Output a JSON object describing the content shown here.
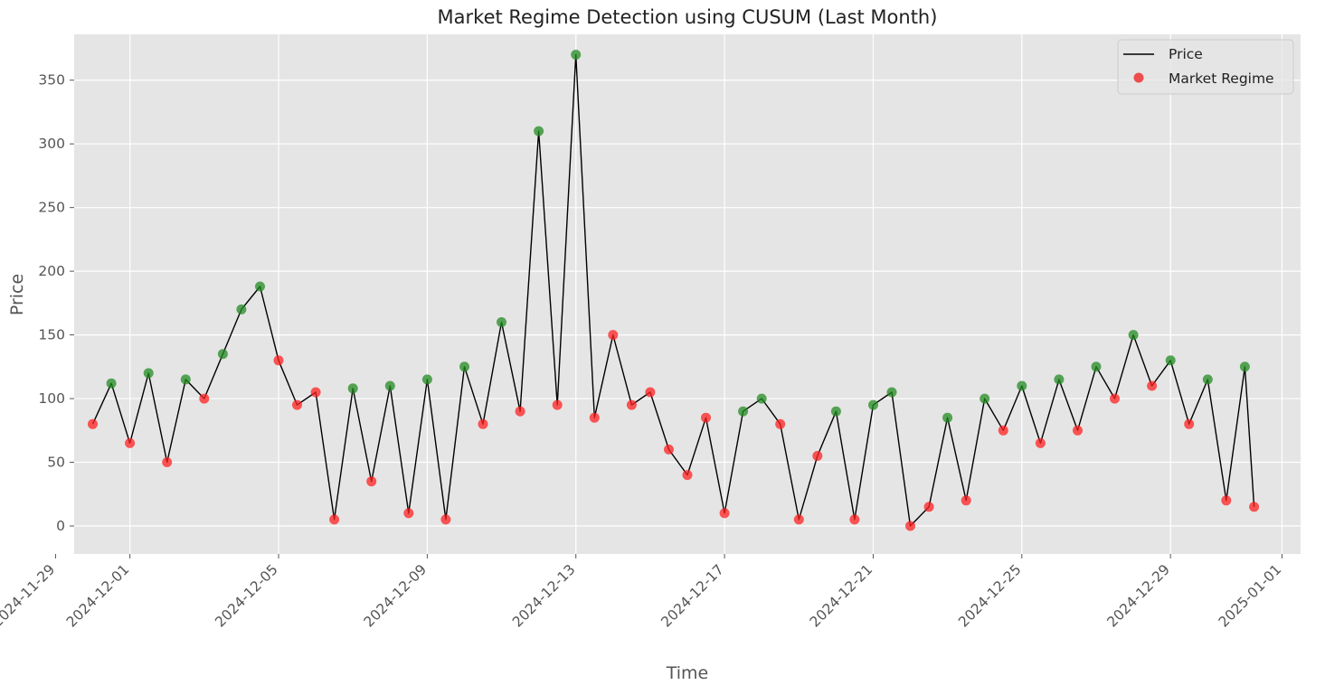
{
  "chart_data": {
    "type": "line",
    "title": "Market Regime Detection using CUSUM (Last Month)",
    "xlabel": "Time",
    "ylabel": "Price",
    "xlim": [
      "2024-11-29T12:00",
      "2025-01-01T12:00"
    ],
    "ylim": [
      -22,
      386
    ],
    "x_ticks": [
      "2024-11-29",
      "2024-12-01",
      "2024-12-05",
      "2024-12-09",
      "2024-12-13",
      "2024-12-17",
      "2024-12-21",
      "2024-12-25",
      "2024-12-29",
      "2025-01-01"
    ],
    "y_ticks": [
      0,
      50,
      100,
      150,
      200,
      250,
      300,
      350
    ],
    "grid": true,
    "legend_position": "top-right",
    "legend": [
      {
        "label": "Price",
        "kind": "line",
        "color": "#000000"
      },
      {
        "label": "Market Regime",
        "kind": "marker",
        "color": "#ee3333"
      }
    ],
    "regime_colors": {
      "up": "#228b22",
      "down": "#ff2020"
    },
    "series": [
      {
        "name": "Price",
        "x": [
          "2024-11-30T00:00",
          "2024-11-30T12:00",
          "2024-12-01T00:00",
          "2024-12-01T12:00",
          "2024-12-02T00:00",
          "2024-12-02T12:00",
          "2024-12-03T00:00",
          "2024-12-03T12:00",
          "2024-12-04T00:00",
          "2024-12-04T12:00",
          "2024-12-05T00:00",
          "2024-12-05T12:00",
          "2024-12-06T00:00",
          "2024-12-06T12:00",
          "2024-12-07T00:00",
          "2024-12-07T12:00",
          "2024-12-08T00:00",
          "2024-12-08T12:00",
          "2024-12-09T00:00",
          "2024-12-09T12:00",
          "2024-12-10T00:00",
          "2024-12-10T12:00",
          "2024-12-11T00:00",
          "2024-12-11T12:00",
          "2024-12-12T00:00",
          "2024-12-12T12:00",
          "2024-12-13T00:00",
          "2024-12-13T12:00",
          "2024-12-14T00:00",
          "2024-12-14T12:00",
          "2024-12-15T00:00",
          "2024-12-15T12:00",
          "2024-12-16T00:00",
          "2024-12-16T12:00",
          "2024-12-17T00:00",
          "2024-12-17T12:00",
          "2024-12-18T00:00",
          "2024-12-18T12:00",
          "2024-12-19T00:00",
          "2024-12-19T12:00",
          "2024-12-20T00:00",
          "2024-12-20T12:00",
          "2024-12-21T00:00",
          "2024-12-21T12:00",
          "2024-12-22T00:00",
          "2024-12-22T12:00",
          "2024-12-23T00:00",
          "2024-12-23T12:00",
          "2024-12-24T00:00",
          "2024-12-24T12:00",
          "2024-12-25T00:00",
          "2024-12-25T12:00",
          "2024-12-26T00:00",
          "2024-12-26T12:00",
          "2024-12-27T00:00",
          "2024-12-27T12:00",
          "2024-12-28T00:00",
          "2024-12-28T12:00",
          "2024-12-29T00:00",
          "2024-12-29T12:00",
          "2024-12-30T00:00",
          "2024-12-30T12:00",
          "2024-12-31T00:00",
          "2024-12-31T06:00"
        ],
        "values": [
          80,
          112,
          65,
          120,
          50,
          115,
          100,
          135,
          170,
          188,
          130,
          95,
          105,
          5,
          108,
          35,
          110,
          10,
          115,
          5,
          125,
          80,
          160,
          90,
          310,
          95,
          370,
          85,
          150,
          95,
          105,
          60,
          40,
          85,
          10,
          90,
          100,
          80,
          5,
          55,
          90,
          5,
          95,
          105,
          0,
          15,
          85,
          20,
          100,
          75,
          110,
          65,
          115,
          75,
          125,
          100,
          150,
          110,
          130,
          80,
          115,
          20,
          125,
          15
        ],
        "regime": [
          "down",
          "up",
          "down",
          "up",
          "down",
          "up",
          "down",
          "up",
          "up",
          "up",
          "down",
          "down",
          "down",
          "down",
          "up",
          "down",
          "up",
          "down",
          "up",
          "down",
          "up",
          "down",
          "up",
          "down",
          "up",
          "down",
          "up",
          "down",
          "down",
          "down",
          "down",
          "down",
          "down",
          "down",
          "down",
          "up",
          "up",
          "down",
          "down",
          "down",
          "up",
          "down",
          "up",
          "up",
          "down",
          "down",
          "up",
          "down",
          "up",
          "down",
          "up",
          "down",
          "up",
          "down",
          "up",
          "down",
          "up",
          "down",
          "up",
          "down",
          "up",
          "down",
          "up",
          "down"
        ]
      }
    ]
  }
}
